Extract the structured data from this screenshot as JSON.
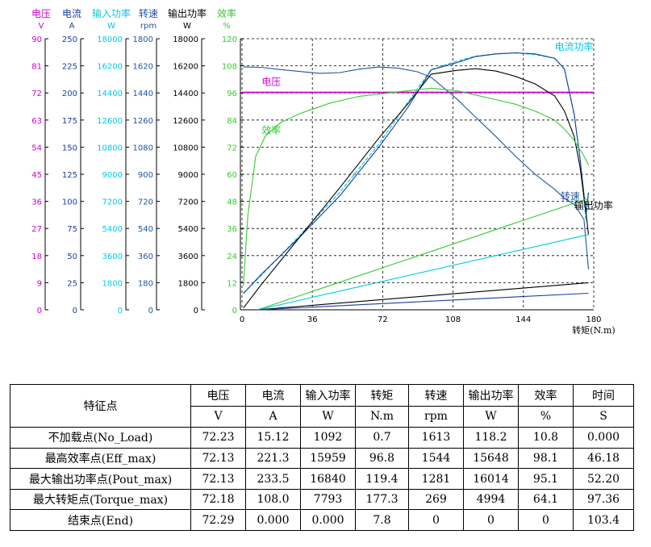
{
  "colors": {
    "voltage": "#cc00cc",
    "current": "#1a3ea0",
    "input_power": "#00c8e8",
    "speed": "#2055a0",
    "output_power": "#000000",
    "efficiency": "#33cc33",
    "grid": "#000000"
  },
  "chart_data": {
    "type": "line",
    "xlabel": "转矩(N.m)",
    "x_ticks": [
      "0",
      "36",
      "72",
      "108",
      "144",
      "180"
    ],
    "xlim": [
      0,
      180
    ],
    "grid": true,
    "axes": [
      {
        "key": "voltage",
        "title": "电压",
        "unit": "V",
        "color_key": "voltage",
        "ticks": [
          "90",
          "81",
          "72",
          "63",
          "54",
          "45",
          "36",
          "27",
          "18",
          "9",
          "0"
        ],
        "ylim": [
          0,
          90
        ]
      },
      {
        "key": "current",
        "title": "电流",
        "unit": "A",
        "color_key": "current",
        "ticks": [
          "250",
          "225",
          "200",
          "175",
          "150",
          "125",
          "100",
          "75",
          "50",
          "25",
          "0"
        ],
        "ylim": [
          0,
          250
        ]
      },
      {
        "key": "input_power",
        "title": "输入功率",
        "unit": "W",
        "color_key": "input_power",
        "ticks": [
          "18000",
          "16200",
          "14400",
          "12600",
          "10800",
          "9000",
          "7200",
          "5400",
          "3600",
          "1800",
          "0"
        ],
        "ylim": [
          0,
          18000
        ]
      },
      {
        "key": "speed",
        "title": "转速",
        "unit": "rpm",
        "color_key": "speed",
        "ticks": [
          "1800",
          "1620",
          "1440",
          "1260",
          "1080",
          "900",
          "720",
          "540",
          "360",
          "180",
          "0"
        ],
        "ylim": [
          0,
          1800
        ]
      },
      {
        "key": "output_power",
        "title": "输出功率",
        "unit": "W",
        "color_key": "output_power",
        "ticks": [
          "18000",
          "16200",
          "14400",
          "12600",
          "10800",
          "9000",
          "7200",
          "5400",
          "3600",
          "1800",
          "0"
        ],
        "ylim": [
          0,
          18000
        ]
      },
      {
        "key": "efficiency",
        "title": "效率",
        "unit": "%",
        "color_key": "efficiency",
        "ticks": [
          "120",
          "108",
          "96",
          "84",
          "72",
          "60",
          "48",
          "36",
          "24",
          "12",
          "0"
        ],
        "ylim": [
          0,
          120
        ]
      }
    ],
    "series": [
      {
        "name": "电压",
        "axis": "voltage",
        "color_key": "voltage",
        "width": 1.8,
        "x": [
          0,
          180
        ],
        "y": [
          72.2,
          72.2
        ]
      },
      {
        "name": "电流功率",
        "axis": "input_power",
        "color_key": "input_power",
        "width": 1.2,
        "dashed": true,
        "x": [
          0.7,
          10,
          30,
          50,
          70,
          85,
          96.8,
          110,
          119.4,
          130,
          140,
          150,
          160,
          165,
          170,
          173,
          176,
          177.3
        ],
        "y": [
          1092,
          2300,
          5000,
          7800,
          11000,
          13800,
          15959,
          16500,
          16840,
          17000,
          17050,
          16950,
          16700,
          16000,
          13000,
          10000,
          6000,
          7793
        ]
      },
      {
        "name": "电流",
        "axis": "current",
        "color_key": "current",
        "width": 1.1,
        "x": [
          0.7,
          10,
          30,
          50,
          70,
          85,
          96.8,
          110,
          119.4,
          130,
          140,
          150,
          160,
          165,
          170,
          173,
          176,
          177.3
        ],
        "y": [
          15.12,
          33,
          68,
          105,
          150,
          187,
          221.3,
          228,
          233.5,
          236,
          237,
          236,
          232,
          222,
          180,
          140,
          90,
          108
        ]
      },
      {
        "name": "转速",
        "axis": "speed",
        "color_key": "speed",
        "width": 1.1,
        "x": [
          0.7,
          10,
          20,
          30,
          40,
          50,
          60,
          70,
          80,
          90,
          96.8,
          110,
          119.4,
          130,
          140,
          150,
          160,
          165,
          170,
          175,
          177.3
        ],
        "y": [
          1613,
          1610,
          1595,
          1582,
          1570,
          1575,
          1598,
          1612,
          1605,
          1580,
          1544,
          1400,
          1281,
          1150,
          1020,
          900,
          800,
          740,
          700,
          600,
          269
        ]
      },
      {
        "name": "输出功率",
        "axis": "output_power",
        "color_key": "output_power",
        "width": 1.1,
        "x": [
          0.7,
          10,
          30,
          50,
          70,
          85,
          96.8,
          110,
          119.4,
          130,
          140,
          150,
          160,
          165,
          170,
          173,
          176,
          177.3
        ],
        "y": [
          118,
          1700,
          4900,
          8100,
          11400,
          13700,
          15648,
          15900,
          16014,
          15850,
          15500,
          15000,
          14200,
          13200,
          11500,
          9500,
          6500,
          4994
        ]
      },
      {
        "name": "效率",
        "axis": "efficiency",
        "color_key": "efficiency",
        "width": 1.1,
        "x": [
          0.7,
          3,
          7,
          12,
          20,
          30,
          45,
          60,
          75,
          90,
          96.8,
          110,
          119.4,
          130,
          140,
          150,
          160,
          165,
          170,
          175,
          177.3
        ],
        "y": [
          10.8,
          42,
          68,
          77,
          83,
          87,
          91.5,
          94.5,
          96,
          97.5,
          98.1,
          97,
          95.1,
          93,
          91,
          88,
          84,
          80,
          75,
          68,
          64.1
        ]
      },
      {
        "name": "",
        "axis": "output_power",
        "color_key": "efficiency",
        "width": 1.1,
        "x": [
          8,
          177.3
        ],
        "y": [
          0,
          7400
        ]
      },
      {
        "name": "",
        "axis": "input_power",
        "color_key": "input_power",
        "width": 1.1,
        "x": [
          8,
          177.3
        ],
        "y": [
          0,
          5000
        ]
      },
      {
        "name": "",
        "axis": "output_power",
        "color_key": "output_power",
        "width": 1.1,
        "x": [
          8,
          177.3
        ],
        "y": [
          0,
          1800
        ]
      },
      {
        "name": "",
        "axis": "input_power",
        "color_key": "current",
        "width": 1.1,
        "x": [
          8,
          177.3
        ],
        "y": [
          0,
          1100
        ]
      }
    ],
    "annotations": [
      {
        "text": "电流功率",
        "color_key": "input_power",
        "x": 160,
        "axis": "input_power",
        "y": 17250
      },
      {
        "text": "电压",
        "color_key": "voltage",
        "x": 10,
        "axis": "voltage",
        "y": 74.6
      },
      {
        "text": "效率",
        "color_key": "efficiency",
        "x": 10,
        "axis": "efficiency",
        "y": 78
      },
      {
        "text": "转速",
        "color_key": "speed",
        "x": 163,
        "axis": "speed",
        "y": 730
      },
      {
        "text": "输出功率",
        "color_key": "output_power",
        "x": 170,
        "axis": "output_power",
        "y": 6700
      }
    ]
  },
  "table": {
    "row_header": "特征点",
    "header_names": [
      "电压",
      "电流",
      "输入功率",
      "转矩",
      "转速",
      "输出功率",
      "效率",
      "时间"
    ],
    "header_units": [
      "V",
      "A",
      "W",
      "N.m",
      "rpm",
      "W",
      "%",
      "S"
    ],
    "rows": [
      {
        "label": "不加载点(No_Load)",
        "values": [
          "72.23",
          "15.12",
          "1092",
          "0.7",
          "1613",
          "118.2",
          "10.8",
          "0.000"
        ]
      },
      {
        "label": "最高效率点(Eff_max)",
        "values": [
          "72.13",
          "221.3",
          "15959",
          "96.8",
          "1544",
          "15648",
          "98.1",
          "46.18"
        ]
      },
      {
        "label": "最大输出功率点(Pout_max)",
        "values": [
          "72.13",
          "233.5",
          "16840",
          "119.4",
          "1281",
          "16014",
          "95.1",
          "52.20"
        ]
      },
      {
        "label": "最大转矩点(Torque_max)",
        "values": [
          "72.18",
          "108.0",
          "7793",
          "177.3",
          "269",
          "4994",
          "64.1",
          "97.36"
        ]
      },
      {
        "label": "结束点(End)",
        "values": [
          "72.29",
          "0.000",
          "0.000",
          "7.8",
          "0",
          "0",
          "0",
          "103.4"
        ]
      }
    ]
  }
}
